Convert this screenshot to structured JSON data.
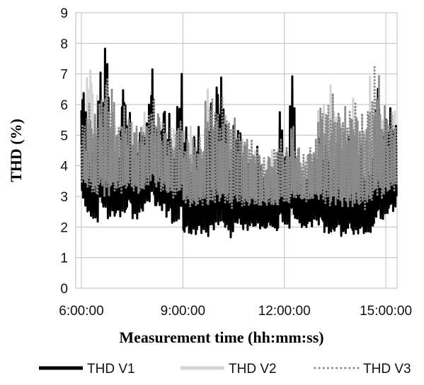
{
  "chart_data": {
    "type": "line",
    "xlabel": "Measurement time (hh:mm:ss)",
    "ylabel": "THD (%)",
    "ylim": [
      0,
      9
    ],
    "y_ticks": [
      "0",
      "1",
      "2",
      "3",
      "4",
      "5",
      "6",
      "7",
      "8",
      "9"
    ],
    "xlim": [
      "5:50:00",
      "15:20:00"
    ],
    "x_ticks": [
      "6:00:00",
      "9:00:00",
      "12:00:00",
      "15:00:00"
    ],
    "grid": true,
    "legend_position": "bottom",
    "series": [
      {
        "name": "THD V1",
        "color": "#000000",
        "style": "solid-thick",
        "x": [
          "6:00:00",
          "6:10:00",
          "6:20:00",
          "6:30:00",
          "6:40:00",
          "6:50:00",
          "7:00:00",
          "7:10:00",
          "7:20:00",
          "7:30:00",
          "7:40:00",
          "7:50:00",
          "8:00:00",
          "8:10:00",
          "8:20:00",
          "8:30:00",
          "8:40:00",
          "8:50:00",
          "9:00:00",
          "9:10:00",
          "9:20:00",
          "9:30:00",
          "9:40:00",
          "9:50:00",
          "10:00:00",
          "10:10:00",
          "10:20:00",
          "10:30:00",
          "10:40:00",
          "10:50:00",
          "11:00:00",
          "11:10:00",
          "11:20:00",
          "11:30:00",
          "11:40:00",
          "11:50:00",
          "12:00:00",
          "12:10:00",
          "12:20:00",
          "12:30:00",
          "12:40:00",
          "12:50:00",
          "13:00:00",
          "13:10:00",
          "13:20:00",
          "13:30:00",
          "13:40:00",
          "13:50:00",
          "14:00:00",
          "14:10:00",
          "14:20:00",
          "14:30:00",
          "14:40:00",
          "14:50:00",
          "15:00:00",
          "15:10:00"
        ],
        "upper": [
          6.8,
          4.5,
          5.0,
          7.1,
          8.4,
          5.5,
          4.8,
          7.0,
          5.8,
          4.9,
          5.3,
          5.5,
          7.4,
          5.5,
          6.2,
          5.8,
          4.8,
          7.1,
          5.6,
          4.3,
          5.3,
          4.8,
          5.9,
          6.1,
          7.5,
          6.3,
          4.7,
          5.6,
          5.2,
          5.0,
          4.3,
          4.8,
          3.7,
          3.8,
          3.3,
          5.8,
          4.8,
          7.0,
          4.1,
          3.2,
          4.0,
          4.5,
          5.4,
          5.0,
          4.2,
          4.9,
          3.8,
          5.3,
          4.2,
          4.7,
          4.0,
          4.3,
          6.9,
          5.6,
          5.9,
          5.8
        ],
        "lower": [
          2.4,
          2.2,
          2.0,
          2.3,
          1.8,
          2.1,
          2.2,
          2.0,
          2.4,
          2.1,
          2.2,
          2.5,
          2.6,
          2.4,
          2.3,
          2.1,
          1.9,
          2.0,
          1.5,
          1.6,
          1.5,
          1.6,
          1.4,
          1.6,
          1.7,
          1.6,
          1.5,
          1.8,
          1.7,
          1.7,
          1.8,
          1.8,
          1.8,
          1.9,
          1.8,
          1.9,
          1.8,
          1.9,
          2.0,
          1.9,
          1.9,
          2.0,
          1.8,
          1.6,
          1.6,
          1.7,
          1.6,
          1.6,
          1.6,
          1.6,
          1.6,
          1.7,
          1.9,
          2.0,
          2.2,
          2.3
        ]
      },
      {
        "name": "THD V2",
        "color": "#d4d4d4",
        "style": "solid-thick",
        "x": [
          "6:00:00",
          "6:10:00",
          "6:20:00",
          "6:30:00",
          "6:40:00",
          "6:50:00",
          "7:00:00",
          "7:10:00",
          "7:20:00",
          "7:30:00",
          "7:40:00",
          "7:50:00",
          "8:00:00",
          "8:10:00",
          "8:20:00",
          "8:30:00",
          "8:40:00",
          "8:50:00",
          "9:00:00",
          "9:10:00",
          "9:20:00",
          "9:30:00",
          "9:40:00",
          "9:50:00",
          "10:00:00",
          "10:10:00",
          "10:20:00",
          "10:30:00",
          "10:40:00",
          "10:50:00",
          "11:00:00",
          "11:10:00",
          "11:20:00",
          "11:30:00",
          "11:40:00",
          "11:50:00",
          "12:00:00",
          "12:10:00",
          "12:20:00",
          "12:30:00",
          "12:40:00",
          "12:50:00",
          "13:00:00",
          "13:10:00",
          "13:20:00",
          "13:30:00",
          "13:40:00",
          "13:50:00",
          "14:00:00",
          "14:10:00",
          "14:20:00",
          "14:30:00",
          "14:40:00",
          "14:50:00",
          "15:00:00",
          "15:10:00"
        ],
        "upper": [
          5.6,
          7.8,
          6.5,
          6.2,
          6.0,
          5.3,
          5.5,
          6.0,
          5.7,
          5.5,
          5.0,
          5.9,
          6.0,
          5.6,
          5.4,
          5.2,
          5.3,
          5.6,
          5.5,
          5.3,
          5.2,
          4.5,
          6.8,
          5.4,
          6.1,
          5.9,
          5.3,
          5.5,
          4.9,
          4.7,
          4.6,
          4.2,
          3.9,
          4.5,
          4.8,
          4.9,
          4.4,
          5.7,
          4.5,
          4.1,
          4.5,
          4.6,
          6.1,
          6.1,
          7.0,
          5.8,
          5.5,
          5.6,
          6.2,
          5.4,
          5.3,
          7.1,
          6.3,
          5.5,
          5.7,
          6.0
        ],
        "lower": [
          2.9,
          2.7,
          2.5,
          2.6,
          2.4,
          2.5,
          2.7,
          2.6,
          2.8,
          2.7,
          2.6,
          2.8,
          3.0,
          2.8,
          2.7,
          2.6,
          2.5,
          2.6,
          2.0,
          1.9,
          1.9,
          2.0,
          1.9,
          2.0,
          2.1,
          2.0,
          1.9,
          2.1,
          2.0,
          2.0,
          2.1,
          2.0,
          2.1,
          2.1,
          2.0,
          2.2,
          2.1,
          2.2,
          2.3,
          2.2,
          2.2,
          2.3,
          2.1,
          2.0,
          1.9,
          2.0,
          1.9,
          1.9,
          1.9,
          1.9,
          1.9,
          2.0,
          2.2,
          2.2,
          2.4,
          2.5
        ]
      },
      {
        "name": "THD V3",
        "color": "#8a8a8a",
        "style": "dotted",
        "x": [
          "6:00:00",
          "6:10:00",
          "6:20:00",
          "6:30:00",
          "6:40:00",
          "6:50:00",
          "7:00:00",
          "7:10:00",
          "7:20:00",
          "7:30:00",
          "7:40:00",
          "7:50:00",
          "8:00:00",
          "8:10:00",
          "8:20:00",
          "8:30:00",
          "8:40:00",
          "8:50:00",
          "9:00:00",
          "9:10:00",
          "9:20:00",
          "9:30:00",
          "9:40:00",
          "9:50:00",
          "10:00:00",
          "10:10:00",
          "10:20:00",
          "10:30:00",
          "10:40:00",
          "10:50:00",
          "11:00:00",
          "11:10:00",
          "11:20:00",
          "11:30:00",
          "11:40:00",
          "11:50:00",
          "12:00:00",
          "12:10:00",
          "12:20:00",
          "12:30:00",
          "12:40:00",
          "12:50:00",
          "13:00:00",
          "13:10:00",
          "13:20:00",
          "13:30:00",
          "13:40:00",
          "13:50:00",
          "14:00:00",
          "14:10:00",
          "14:20:00",
          "14:30:00",
          "14:40:00",
          "14:50:00",
          "15:00:00",
          "15:10:00"
        ],
        "upper": [
          5.5,
          6.2,
          5.8,
          6.4,
          7.3,
          6.6,
          5.5,
          6.0,
          5.8,
          5.5,
          5.3,
          5.6,
          6.2,
          6.0,
          5.6,
          5.3,
          5.2,
          5.8,
          5.2,
          5.0,
          4.9,
          5.1,
          6.2,
          6.6,
          6.0,
          6.3,
          5.9,
          5.6,
          5.3,
          5.1,
          4.9,
          4.8,
          4.3,
          4.5,
          4.7,
          5.0,
          4.7,
          5.5,
          4.8,
          4.4,
          4.8,
          4.9,
          6.2,
          6.3,
          6.4,
          6.2,
          6.0,
          6.1,
          6.4,
          5.8,
          6.0,
          6.6,
          7.5,
          6.1,
          5.9,
          6.0
        ],
        "lower": [
          3.2,
          3.0,
          2.8,
          3.0,
          2.7,
          2.9,
          3.0,
          2.9,
          3.1,
          3.0,
          2.9,
          3.1,
          3.3,
          3.1,
          3.0,
          2.9,
          2.8,
          2.9,
          2.6,
          2.5,
          2.5,
          2.6,
          2.4,
          2.5,
          2.6,
          2.5,
          2.4,
          2.6,
          2.5,
          2.5,
          2.6,
          2.5,
          2.6,
          2.6,
          2.5,
          2.7,
          2.6,
          2.7,
          2.8,
          2.7,
          2.7,
          2.8,
          2.6,
          2.5,
          2.4,
          2.5,
          2.4,
          2.4,
          2.4,
          2.4,
          2.4,
          2.5,
          2.7,
          2.7,
          2.9,
          3.0
        ]
      }
    ]
  }
}
